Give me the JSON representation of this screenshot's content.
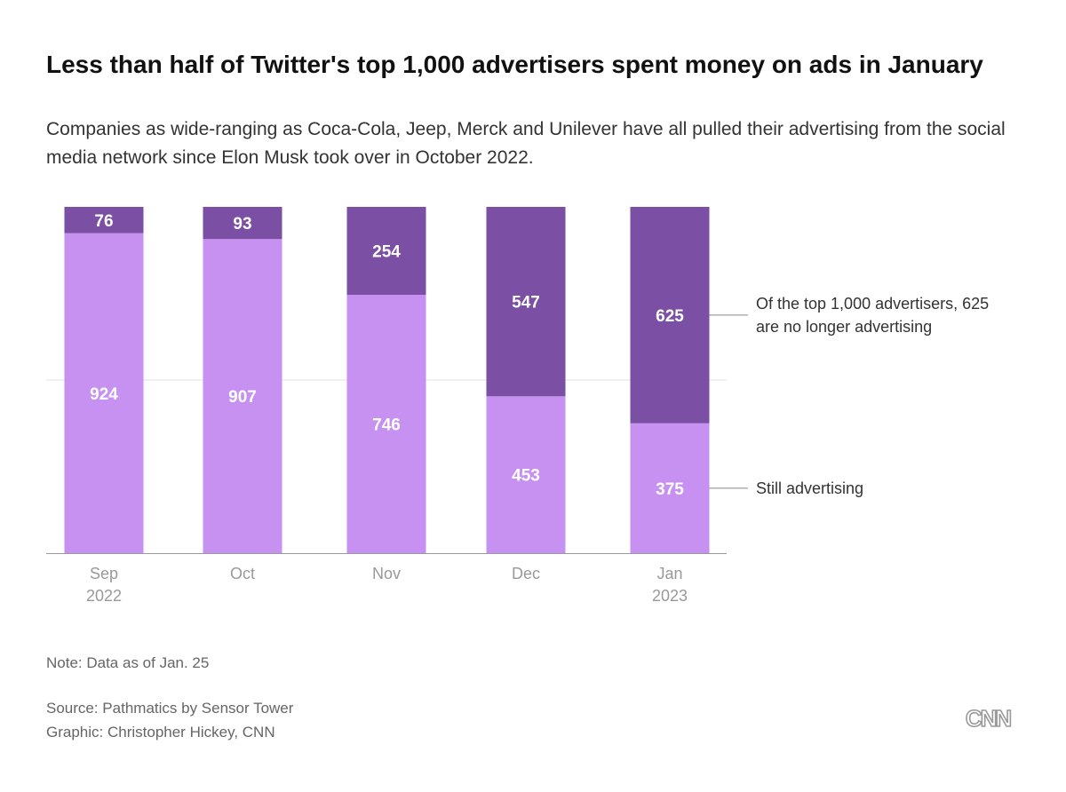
{
  "title": "Less than half of Twitter's top 1,000 advertisers spent money on ads in January",
  "subtitle": "Companies as wide-ranging as Coca-Cola, Jeep, Merck and Unilever have all pulled their advertising from the social media network since Elon Musk took over in October 2022.",
  "chart_data": {
    "type": "bar",
    "stacked": true,
    "categories": [
      [
        "Sep",
        "2022"
      ],
      [
        "Oct",
        ""
      ],
      [
        "Nov",
        ""
      ],
      [
        "Dec",
        ""
      ],
      [
        "Jan",
        "2023"
      ]
    ],
    "series": [
      {
        "key": "still",
        "values": [
          924,
          907,
          746,
          453,
          375
        ],
        "color": "#c691f0"
      },
      {
        "key": "stopped",
        "values": [
          76,
          93,
          254,
          547,
          625
        ],
        "color": "#7b4fa3"
      }
    ],
    "ylim": [
      0,
      1000
    ],
    "gridlines": [
      500
    ],
    "annotations": [
      {
        "series": "stopped",
        "category_index": 4,
        "lines": [
          "Of the top 1,000 advertisers, 625",
          "are no longer advertising"
        ]
      },
      {
        "series": "still",
        "category_index": 4,
        "lines": [
          "Still advertising"
        ]
      }
    ]
  },
  "footer": {
    "note": "Note: Data as of Jan. 25",
    "source": "Source: Pathmatics by Sensor Tower",
    "credit": "Graphic: Christopher Hickey, CNN"
  },
  "logo": {
    "text": "CNN"
  }
}
